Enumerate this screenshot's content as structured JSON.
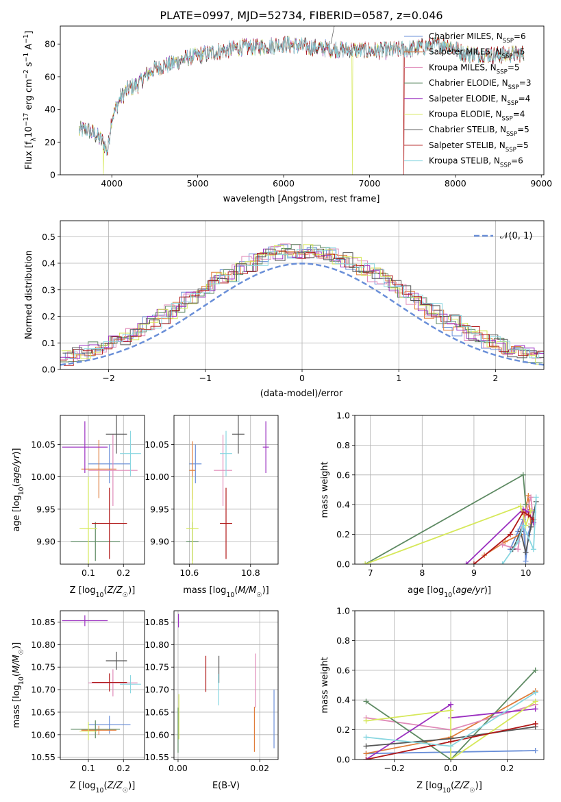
{
  "figure": {
    "title": "PLATE=0997, MJD=52734, FIBERID=0587, z=0.046"
  },
  "palette": {
    "Chabrier MILES": "#6a8fd8",
    "Salpeter MILES": "#e07c3a",
    "Kroupa MILES": "#e08ab8",
    "Chabrier ELODIE": "#5e8a63",
    "Salpeter ELODIE": "#9b30c0",
    "Kroupa ELODIE": "#d6e85a",
    "Chabrier STELIB": "#555555",
    "Salpeter STELIB": "#b01818",
    "Kroupa STELIB": "#88d6e0"
  },
  "chart_data": [
    {
      "id": "spectrum",
      "type": "line",
      "title": "PLATE=0997, MJD=52734, FIBERID=0587, z=0.046",
      "xlabel": "wavelength [Angstrom, rest frame]",
      "ylabel": "Flux [f_λ 10^-17 erg cm^-2 s^-1 A^-1]",
      "xlim": [
        3400,
        9030
      ],
      "ylim": [
        0,
        91
      ],
      "xticks": [
        4000,
        5000,
        6000,
        7000,
        8000,
        9000
      ],
      "yticks": [
        0,
        20,
        40,
        60,
        80
      ],
      "legend": "upper right",
      "grid": false,
      "continuum": {
        "x": [
          3620,
          3700,
          3800,
          3900,
          3950,
          4000,
          4100,
          4200,
          4300,
          4400,
          4500,
          4700,
          4900,
          5100,
          5300,
          5500,
          5700,
          6000,
          6300,
          6600,
          6900,
          7200,
          7500,
          7700,
          7900,
          8100,
          8300,
          8500,
          8700,
          8800
        ],
        "y": [
          27,
          28,
          25,
          20,
          14,
          35,
          47,
          53,
          55,
          61,
          65,
          68,
          72,
          74,
          76,
          78,
          78,
          80,
          78,
          77,
          76,
          76,
          77,
          79,
          80,
          74,
          74,
          73,
          74,
          74
        ]
      },
      "series_names": [
        "Chabrier MILES",
        "Salpeter MILES",
        "Kroupa MILES",
        "Chabrier ELODIE",
        "Salpeter ELODIE",
        "Kroupa ELODIE",
        "Chabrier STELIB",
        "Salpeter STELIB",
        "Kroupa STELIB"
      ],
      "legend_entries": [
        {
          "name": "Chabrier MILES",
          "label": "Chabrier MILES, N",
          "sub": "SSP",
          "tail": "=6"
        },
        {
          "name": "Salpeter MILES",
          "label": "Salpeter MILES, N",
          "sub": "SSP",
          "tail": "=5"
        },
        {
          "name": "Kroupa MILES",
          "label": "Kroupa MILES, N",
          "sub": "SSP",
          "tail": "=5"
        },
        {
          "name": "Chabrier ELODIE",
          "label": "Chabrier ELODIE, N",
          "sub": "SSP",
          "tail": "=3"
        },
        {
          "name": "Salpeter ELODIE",
          "label": "Salpeter ELODIE, N",
          "sub": "SSP",
          "tail": "=4"
        },
        {
          "name": "Kroupa ELODIE",
          "label": "Kroupa ELODIE, N",
          "sub": "SSP",
          "tail": "=4"
        },
        {
          "name": "Chabrier STELIB",
          "label": "Chabrier STELIB, N",
          "sub": "SSP",
          "tail": "=5"
        },
        {
          "name": "Salpeter STELIB",
          "label": "Salpeter STELIB, N",
          "sub": "SSP",
          "tail": "=5"
        },
        {
          "name": "Kroupa STELIB",
          "label": "Kroupa STELIB, N",
          "sub": "SSP",
          "tail": "=6"
        }
      ],
      "drops": [
        {
          "series": "Kroupa ELODIE",
          "x": 3900
        },
        {
          "series": "Kroupa ELODIE",
          "x": 6800
        },
        {
          "series": "Salpeter STELIB",
          "x": 7400
        }
      ]
    },
    {
      "id": "residuals",
      "type": "line",
      "xlabel": "(data-model)/error",
      "ylabel": "Normed distribution",
      "xlim": [
        -2.5,
        2.5
      ],
      "ylim": [
        0,
        0.56
      ],
      "xticks": [
        -2,
        -1,
        0,
        1,
        2
      ],
      "xtick_labels": [
        "−2",
        "−1",
        "0",
        "1",
        "2"
      ],
      "yticks": [
        0.0,
        0.1,
        0.2,
        0.3,
        0.4,
        0.5
      ],
      "ytick_labels": [
        "0.0",
        "0.1",
        "0.2",
        "0.3",
        "0.4",
        "0.5"
      ],
      "grid": true,
      "legend": "upper right",
      "reference_label": "𝒩(0, 1)",
      "bin_width": 0.1
    },
    {
      "id": "age_vs_Z",
      "type": "scatter",
      "xlabel": "Z [log10(Z/Z☉)]",
      "ylabel": "age  [log10(age/yr)]",
      "xlim": [
        0.02,
        0.26
      ],
      "ylim": [
        9.865,
        10.095
      ],
      "xticks": [
        0.1,
        0.2
      ],
      "xtick_labels": [
        "0.1",
        "0.2"
      ],
      "yticks": [
        9.9,
        9.95,
        10.0,
        10.05
      ],
      "ytick_labels": [
        "9.90",
        "9.95",
        "10.00",
        "10.05"
      ],
      "grid": true,
      "points": [
        {
          "series": "Chabrier MILES",
          "x": 0.16,
          "y": 10.02,
          "xerr": 0.06,
          "yerr": 0.03
        },
        {
          "series": "Salpeter MILES",
          "x": 0.13,
          "y": 10.012,
          "xerr": 0.05,
          "yerr": 0.045
        },
        {
          "series": "Kroupa MILES",
          "x": 0.17,
          "y": 10.01,
          "xerr": 0.07,
          "yerr": 0.055
        },
        {
          "series": "Chabrier ELODIE",
          "x": 0.12,
          "y": 9.9,
          "xerr": 0.07,
          "yerr": 0.03
        },
        {
          "series": "Salpeter ELODIE",
          "x": 0.09,
          "y": 10.046,
          "xerr": 0.065,
          "yerr": 0.04
        },
        {
          "series": "Kroupa ELODIE",
          "x": 0.1,
          "y": 9.92,
          "xerr": 0.025,
          "yerr": 0.08
        },
        {
          "series": "Chabrier STELIB",
          "x": 0.18,
          "y": 10.066,
          "xerr": 0.03,
          "yerr": 0.03
        },
        {
          "series": "Salpeter STELIB",
          "x": 0.16,
          "y": 9.928,
          "xerr": 0.05,
          "yerr": 0.055
        },
        {
          "series": "Kroupa STELIB",
          "x": 0.22,
          "y": 10.036,
          "xerr": 0.03,
          "yerr": 0.035
        }
      ]
    },
    {
      "id": "age_vs_mass",
      "type": "scatter",
      "xlabel": "mass [log10(M/M☉)]",
      "ylabel": "",
      "xlim": [
        10.55,
        10.89
      ],
      "ylim": [
        9.865,
        10.095
      ],
      "xticks": [
        10.6,
        10.8
      ],
      "xtick_labels": [
        "10.6",
        "10.8"
      ],
      "yticks": [
        9.9,
        9.95,
        10.0,
        10.05
      ],
      "ytick_labels": [
        "9.90",
        "9.95",
        "10.00",
        "10.05"
      ],
      "grid": true,
      "points": [
        {
          "series": "Chabrier MILES",
          "x": 10.62,
          "y": 10.02,
          "xerr": 0.02,
          "yerr": 0.03
        },
        {
          "series": "Salpeter MILES",
          "x": 10.61,
          "y": 10.01,
          "xerr": 0.01,
          "yerr": 0.045
        },
        {
          "series": "Kroupa MILES",
          "x": 10.71,
          "y": 10.01,
          "xerr": 0.03,
          "yerr": 0.055
        },
        {
          "series": "Chabrier ELODIE",
          "x": 10.61,
          "y": 9.9,
          "xerr": 0.02,
          "yerr": 0.03
        },
        {
          "series": "Salpeter ELODIE",
          "x": 10.85,
          "y": 10.046,
          "xerr": 0.01,
          "yerr": 0.04
        },
        {
          "series": "Kroupa ELODIE",
          "x": 10.61,
          "y": 9.92,
          "xerr": 0.02,
          "yerr": 0.08
        },
        {
          "series": "Chabrier STELIB",
          "x": 10.76,
          "y": 10.066,
          "xerr": 0.02,
          "yerr": 0.03
        },
        {
          "series": "Salpeter STELIB",
          "x": 10.72,
          "y": 9.928,
          "xerr": 0.02,
          "yerr": 0.055
        },
        {
          "series": "Kroupa STELIB",
          "x": 10.72,
          "y": 10.036,
          "xerr": 0.02,
          "yerr": 0.035
        }
      ]
    },
    {
      "id": "weight_vs_age",
      "type": "line",
      "xlabel": "age  [log10(age/yr)]",
      "ylabel": "mass weight",
      "xlim": [
        6.7,
        10.35
      ],
      "ylim": [
        0,
        1
      ],
      "xticks": [
        7,
        8,
        9,
        10
      ],
      "xtick_labels": [
        "7",
        "8",
        "9",
        "10"
      ],
      "yticks": [
        0.0,
        0.2,
        0.4,
        0.6,
        0.8,
        1.0
      ],
      "ytick_labels": [
        "0.0",
        "0.2",
        "0.4",
        "0.6",
        "0.8",
        "1.0"
      ],
      "grid": true,
      "series": [
        {
          "name": "Chabrier MILES",
          "x": [
            9.7,
            9.85,
            9.95,
            10.0,
            10.05,
            10.15
          ],
          "y": [
            0.1,
            0.22,
            0.3,
            0.02,
            0.2,
            0.35
          ]
        },
        {
          "name": "Salpeter MILES",
          "x": [
            9.2,
            9.6,
            9.9,
            10.05,
            10.1
          ],
          "y": [
            0.06,
            0.15,
            0.2,
            0.46,
            0.27
          ]
        },
        {
          "name": "Kroupa MILES",
          "x": [
            9.55,
            9.85,
            9.9,
            10.1,
            10.15
          ],
          "y": [
            0.13,
            0.1,
            0.22,
            0.45,
            0.27
          ]
        },
        {
          "name": "Chabrier ELODIE",
          "x": [
            6.9,
            9.95,
            10.0
          ],
          "y": [
            0.0,
            0.6,
            0.4
          ]
        },
        {
          "name": "Salpeter ELODIE",
          "x": [
            8.85,
            9.95,
            10.05,
            10.15
          ],
          "y": [
            0.0,
            0.37,
            0.35,
            0.28
          ]
        },
        {
          "name": "Kroupa ELODIE",
          "x": [
            6.9,
            9.9,
            10.0,
            10.1
          ],
          "y": [
            0.0,
            0.39,
            0.26,
            0.36
          ]
        },
        {
          "name": "Chabrier STELIB",
          "x": [
            9.75,
            9.9,
            10.0,
            10.1,
            10.2
          ],
          "y": [
            0.1,
            0.22,
            0.08,
            0.25,
            0.42
          ]
        },
        {
          "name": "Salpeter STELIB",
          "x": [
            9.0,
            9.7,
            9.95,
            10.05,
            10.15
          ],
          "y": [
            0.0,
            0.2,
            0.35,
            0.33,
            0.3
          ]
        },
        {
          "name": "Kroupa STELIB",
          "x": [
            9.55,
            9.85,
            9.95,
            10.15,
            10.2
          ],
          "y": [
            0.0,
            0.15,
            0.26,
            0.1,
            0.45
          ]
        }
      ]
    },
    {
      "id": "mass_vs_Z",
      "type": "scatter",
      "xlabel": "Z [log10(Z/Z☉)]",
      "ylabel": "mass [log10(M/M☉)]",
      "xlim": [
        0.02,
        0.26
      ],
      "ylim": [
        10.545,
        10.875
      ],
      "xticks": [
        0.1,
        0.2
      ],
      "xtick_labels": [
        "0.1",
        "0.2"
      ],
      "yticks": [
        10.55,
        10.6,
        10.65,
        10.7,
        10.75,
        10.8,
        10.85
      ],
      "ytick_labels": [
        "10.55",
        "10.60",
        "10.65",
        "10.70",
        "10.75",
        "10.80",
        "10.85"
      ],
      "grid": true,
      "points": [
        {
          "series": "Chabrier MILES",
          "x": 0.16,
          "y": 10.622,
          "xerr": 0.06,
          "yerr": 0.02
        },
        {
          "series": "Salpeter MILES",
          "x": 0.13,
          "y": 10.61,
          "xerr": 0.05,
          "yerr": 0.01
        },
        {
          "series": "Kroupa MILES",
          "x": 0.17,
          "y": 10.715,
          "xerr": 0.07,
          "yerr": 0.03
        },
        {
          "series": "Chabrier ELODIE",
          "x": 0.12,
          "y": 10.612,
          "xerr": 0.07,
          "yerr": 0.02
        },
        {
          "series": "Salpeter ELODIE",
          "x": 0.09,
          "y": 10.853,
          "xerr": 0.065,
          "yerr": 0.012
        },
        {
          "series": "Kroupa ELODIE",
          "x": 0.1,
          "y": 10.608,
          "xerr": 0.025,
          "yerr": 0.02
        },
        {
          "series": "Chabrier STELIB",
          "x": 0.18,
          "y": 10.764,
          "xerr": 0.03,
          "yerr": 0.02
        },
        {
          "series": "Salpeter STELIB",
          "x": 0.16,
          "y": 10.716,
          "xerr": 0.05,
          "yerr": 0.02
        },
        {
          "series": "Kroupa STELIB",
          "x": 0.22,
          "y": 10.712,
          "xerr": 0.03,
          "yerr": 0.02
        }
      ]
    },
    {
      "id": "mass_vs_ebv",
      "type": "scatter",
      "xlabel": "E(B-V)",
      "ylabel": "",
      "xlim": [
        -0.001,
        0.0245
      ],
      "ylim": [
        10.545,
        10.875
      ],
      "xticks": [
        0.0,
        0.02
      ],
      "xtick_labels": [
        "0.00",
        "0.02"
      ],
      "yticks": [
        10.55,
        10.6,
        10.65,
        10.7,
        10.75,
        10.8,
        10.85
      ],
      "ytick_labels": [
        "10.55",
        "10.60",
        "10.65",
        "10.70",
        "10.75",
        "10.80",
        "10.85"
      ],
      "grid": true,
      "points": [
        {
          "series": "Chabrier MILES",
          "x": 0.0235,
          "y": 10.635,
          "xerr": 0,
          "yerr": 0.065
        },
        {
          "series": "Salpeter MILES",
          "x": 0.0187,
          "y": 10.612,
          "xerr": 0,
          "yerr": 0.05
        },
        {
          "series": "Kroupa MILES",
          "x": 0.019,
          "y": 10.72,
          "xerr": 0,
          "yerr": 0.06
        },
        {
          "series": "Chabrier ELODIE",
          "x": 0.0,
          "y": 10.61,
          "xerr": 0,
          "yerr": 0.05
        },
        {
          "series": "Salpeter ELODIE",
          "x": 0.0001,
          "y": 10.853,
          "xerr": 0,
          "yerr": 0.015
        },
        {
          "series": "Kroupa ELODIE",
          "x": 0.0002,
          "y": 10.64,
          "xerr": 0,
          "yerr": 0.05
        },
        {
          "series": "Chabrier STELIB",
          "x": 0.01,
          "y": 10.745,
          "xerr": 0,
          "yerr": 0.03
        },
        {
          "series": "Salpeter STELIB",
          "x": 0.0068,
          "y": 10.735,
          "xerr": 0,
          "yerr": 0.04
        },
        {
          "series": "Kroupa STELIB",
          "x": 0.0099,
          "y": 10.7,
          "xerr": 0,
          "yerr": 0.035
        }
      ]
    },
    {
      "id": "weight_vs_Z",
      "type": "line",
      "xlabel": "Z [log10(Z/Z☉)]",
      "ylabel": "mass weight",
      "xlim": [
        -0.34,
        0.33
      ],
      "ylim": [
        0,
        1
      ],
      "xticks": [
        -0.2,
        0.0,
        0.2
      ],
      "xtick_labels": [
        "−0.2",
        "0.0",
        "0.2"
      ],
      "yticks": [
        0.0,
        0.2,
        0.4,
        0.6,
        0.8,
        1.0
      ],
      "ytick_labels": [
        "0.0",
        "0.2",
        "0.4",
        "0.6",
        "0.8",
        "1.0"
      ],
      "grid": true,
      "series": [
        {
          "name": "Chabrier MILES",
          "x": [
            -0.3,
            0.0,
            0.3
          ],
          "y": [
            0.04,
            0.05,
            0.06
          ]
        },
        {
          "name": "Salpeter MILES",
          "x": [
            -0.3,
            0.0,
            0.3
          ],
          "y": [
            0.04,
            0.15,
            0.46
          ]
        },
        {
          "name": "Kroupa MILES",
          "x": [
            -0.3,
            0.0,
            0.3
          ],
          "y": [
            0.28,
            0.2,
            0.37
          ]
        },
        {
          "name": "Chabrier ELODIE",
          "x": [
            -0.3,
            0.0,
            0.3
          ],
          "y": [
            0.39,
            0.0,
            0.6
          ]
        },
        {
          "name": "Salpeter ELODIE",
          "x": [
            -0.3,
            0.0,
            0.0,
            0.3
          ],
          "y": [
            0.0,
            0.37,
            0.28,
            0.34
          ]
        },
        {
          "name": "Kroupa ELODIE",
          "x": [
            -0.3,
            0.0,
            0.0,
            0.3
          ],
          "y": [
            0.26,
            0.33,
            0.0,
            0.39
          ]
        },
        {
          "name": "Chabrier STELIB",
          "x": [
            -0.3,
            0.0,
            0.3
          ],
          "y": [
            0.09,
            0.14,
            0.22
          ]
        },
        {
          "name": "Salpeter STELIB",
          "x": [
            -0.3,
            0.0,
            0.3
          ],
          "y": [
            0.0,
            0.12,
            0.24
          ]
        },
        {
          "name": "Kroupa STELIB",
          "x": [
            -0.3,
            0.0,
            0.3
          ],
          "y": [
            0.15,
            0.09,
            0.45
          ]
        }
      ]
    }
  ]
}
